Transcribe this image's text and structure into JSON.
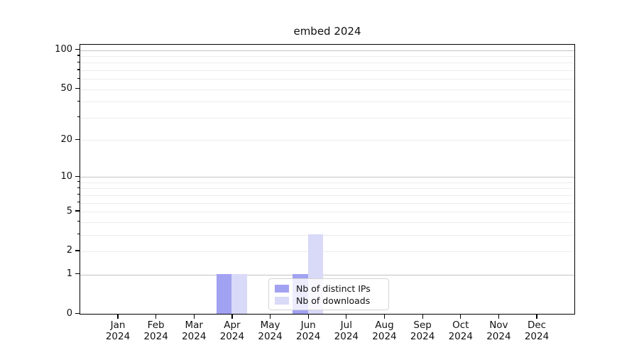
{
  "chart_data": {
    "type": "bar",
    "title": "embed 2024",
    "categories": [
      "Jan 2024",
      "Feb 2024",
      "Mar 2024",
      "Apr 2024",
      "May 2024",
      "Jun 2024",
      "Jul 2024",
      "Aug 2024",
      "Sep 2024",
      "Oct 2024",
      "Nov 2024",
      "Dec 2024"
    ],
    "series": [
      {
        "name": "Nb of distinct IPs",
        "color": "#a2a2f2",
        "values": [
          0,
          0,
          0,
          1,
          0,
          1,
          0,
          0,
          0,
          0,
          0,
          0
        ]
      },
      {
        "name": "Nb of downloads",
        "color": "#d9d9f8",
        "values": [
          0,
          0,
          0,
          1,
          0,
          3,
          0,
          0,
          0,
          0,
          0,
          0
        ]
      }
    ],
    "xlabel": "",
    "ylabel": "",
    "yscale": "log1p",
    "ylim": [
      0,
      115
    ],
    "ytick_values": [
      0,
      1,
      2,
      5,
      10,
      20,
      50,
      100
    ],
    "ytick_labels": [
      "0",
      "1",
      "2",
      "5",
      "10",
      "20",
      "50",
      "100"
    ],
    "major_gridline_values": [
      1,
      10,
      100
    ],
    "minor_gridline_values": [
      2,
      3,
      4,
      5,
      6,
      7,
      8,
      9,
      20,
      30,
      40,
      50,
      60,
      70,
      80,
      90
    ],
    "grid": true,
    "legend_position": "lower center",
    "colors": {
      "axis": "#000000",
      "major_grid": "#c3c3c3",
      "minor_grid": "#ececec",
      "background": "#ffffff"
    }
  }
}
